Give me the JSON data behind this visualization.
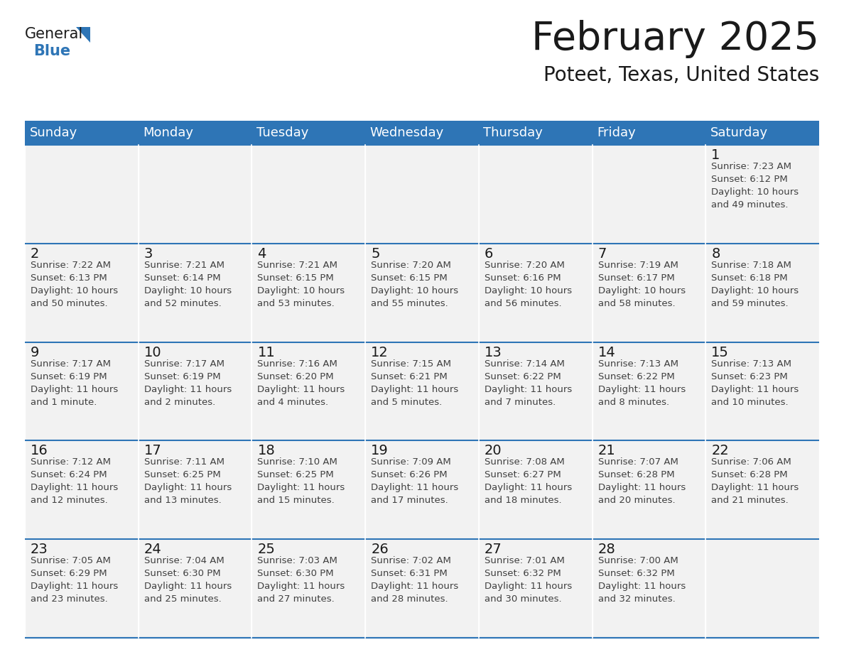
{
  "title": "February 2025",
  "subtitle": "Poteet, Texas, United States",
  "header_bg": "#2E75B6",
  "header_text_color": "#FFFFFF",
  "cell_bg": "#F2F2F2",
  "day_number_color": "#1A1A1A",
  "text_color": "#404040",
  "border_color": "#2E75B6",
  "logo_general_color": "#1A1A1A",
  "logo_blue_color": "#2E75B6",
  "days_of_week": [
    "Sunday",
    "Monday",
    "Tuesday",
    "Wednesday",
    "Thursday",
    "Friday",
    "Saturday"
  ],
  "weeks": [
    [
      {
        "day": null,
        "info": null
      },
      {
        "day": null,
        "info": null
      },
      {
        "day": null,
        "info": null
      },
      {
        "day": null,
        "info": null
      },
      {
        "day": null,
        "info": null
      },
      {
        "day": null,
        "info": null
      },
      {
        "day": 1,
        "info": "Sunrise: 7:23 AM\nSunset: 6:12 PM\nDaylight: 10 hours\nand 49 minutes."
      }
    ],
    [
      {
        "day": 2,
        "info": "Sunrise: 7:22 AM\nSunset: 6:13 PM\nDaylight: 10 hours\nand 50 minutes."
      },
      {
        "day": 3,
        "info": "Sunrise: 7:21 AM\nSunset: 6:14 PM\nDaylight: 10 hours\nand 52 minutes."
      },
      {
        "day": 4,
        "info": "Sunrise: 7:21 AM\nSunset: 6:15 PM\nDaylight: 10 hours\nand 53 minutes."
      },
      {
        "day": 5,
        "info": "Sunrise: 7:20 AM\nSunset: 6:15 PM\nDaylight: 10 hours\nand 55 minutes."
      },
      {
        "day": 6,
        "info": "Sunrise: 7:20 AM\nSunset: 6:16 PM\nDaylight: 10 hours\nand 56 minutes."
      },
      {
        "day": 7,
        "info": "Sunrise: 7:19 AM\nSunset: 6:17 PM\nDaylight: 10 hours\nand 58 minutes."
      },
      {
        "day": 8,
        "info": "Sunrise: 7:18 AM\nSunset: 6:18 PM\nDaylight: 10 hours\nand 59 minutes."
      }
    ],
    [
      {
        "day": 9,
        "info": "Sunrise: 7:17 AM\nSunset: 6:19 PM\nDaylight: 11 hours\nand 1 minute."
      },
      {
        "day": 10,
        "info": "Sunrise: 7:17 AM\nSunset: 6:19 PM\nDaylight: 11 hours\nand 2 minutes."
      },
      {
        "day": 11,
        "info": "Sunrise: 7:16 AM\nSunset: 6:20 PM\nDaylight: 11 hours\nand 4 minutes."
      },
      {
        "day": 12,
        "info": "Sunrise: 7:15 AM\nSunset: 6:21 PM\nDaylight: 11 hours\nand 5 minutes."
      },
      {
        "day": 13,
        "info": "Sunrise: 7:14 AM\nSunset: 6:22 PM\nDaylight: 11 hours\nand 7 minutes."
      },
      {
        "day": 14,
        "info": "Sunrise: 7:13 AM\nSunset: 6:22 PM\nDaylight: 11 hours\nand 8 minutes."
      },
      {
        "day": 15,
        "info": "Sunrise: 7:13 AM\nSunset: 6:23 PM\nDaylight: 11 hours\nand 10 minutes."
      }
    ],
    [
      {
        "day": 16,
        "info": "Sunrise: 7:12 AM\nSunset: 6:24 PM\nDaylight: 11 hours\nand 12 minutes."
      },
      {
        "day": 17,
        "info": "Sunrise: 7:11 AM\nSunset: 6:25 PM\nDaylight: 11 hours\nand 13 minutes."
      },
      {
        "day": 18,
        "info": "Sunrise: 7:10 AM\nSunset: 6:25 PM\nDaylight: 11 hours\nand 15 minutes."
      },
      {
        "day": 19,
        "info": "Sunrise: 7:09 AM\nSunset: 6:26 PM\nDaylight: 11 hours\nand 17 minutes."
      },
      {
        "day": 20,
        "info": "Sunrise: 7:08 AM\nSunset: 6:27 PM\nDaylight: 11 hours\nand 18 minutes."
      },
      {
        "day": 21,
        "info": "Sunrise: 7:07 AM\nSunset: 6:28 PM\nDaylight: 11 hours\nand 20 minutes."
      },
      {
        "day": 22,
        "info": "Sunrise: 7:06 AM\nSunset: 6:28 PM\nDaylight: 11 hours\nand 21 minutes."
      }
    ],
    [
      {
        "day": 23,
        "info": "Sunrise: 7:05 AM\nSunset: 6:29 PM\nDaylight: 11 hours\nand 23 minutes."
      },
      {
        "day": 24,
        "info": "Sunrise: 7:04 AM\nSunset: 6:30 PM\nDaylight: 11 hours\nand 25 minutes."
      },
      {
        "day": 25,
        "info": "Sunrise: 7:03 AM\nSunset: 6:30 PM\nDaylight: 11 hours\nand 27 minutes."
      },
      {
        "day": 26,
        "info": "Sunrise: 7:02 AM\nSunset: 6:31 PM\nDaylight: 11 hours\nand 28 minutes."
      },
      {
        "day": 27,
        "info": "Sunrise: 7:01 AM\nSunset: 6:32 PM\nDaylight: 11 hours\nand 30 minutes."
      },
      {
        "day": 28,
        "info": "Sunrise: 7:00 AM\nSunset: 6:32 PM\nDaylight: 11 hours\nand 32 minutes."
      },
      {
        "day": null,
        "info": null
      }
    ]
  ],
  "fig_width": 11.88,
  "fig_height": 9.18,
  "dpi": 100
}
